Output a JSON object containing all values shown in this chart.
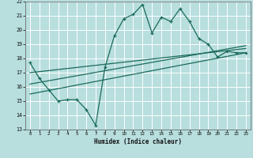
{
  "xlabel": "Humidex (Indice chaleur)",
  "bg_color": "#b8dede",
  "grid_color": "#ffffff",
  "line_color": "#1a6b5a",
  "xlim": [
    -0.5,
    23.5
  ],
  "ylim": [
    13,
    22
  ],
  "xticks": [
    0,
    1,
    2,
    3,
    4,
    5,
    6,
    7,
    8,
    9,
    10,
    11,
    12,
    13,
    14,
    15,
    16,
    17,
    18,
    19,
    20,
    21,
    22,
    23
  ],
  "yticks": [
    13,
    14,
    15,
    16,
    17,
    18,
    19,
    20,
    21,
    22
  ],
  "line1_x": [
    0,
    1,
    2,
    3,
    4,
    5,
    6,
    7,
    8,
    9,
    10,
    11,
    12,
    13,
    14,
    15,
    16,
    17,
    18,
    19,
    20,
    21,
    22,
    23
  ],
  "line1_y": [
    17.7,
    16.6,
    15.8,
    15.0,
    15.1,
    15.1,
    14.4,
    13.3,
    17.4,
    19.6,
    20.8,
    21.1,
    21.8,
    19.8,
    20.9,
    20.6,
    21.5,
    20.6,
    19.4,
    19.0,
    18.1,
    18.5,
    18.4,
    18.4
  ],
  "line2_x": [
    0,
    23
  ],
  "line2_y": [
    15.5,
    18.4
  ],
  "line3_x": [
    0,
    23
  ],
  "line3_y": [
    16.2,
    18.9
  ],
  "line4_x": [
    0,
    23
  ],
  "line4_y": [
    17.0,
    18.7
  ]
}
